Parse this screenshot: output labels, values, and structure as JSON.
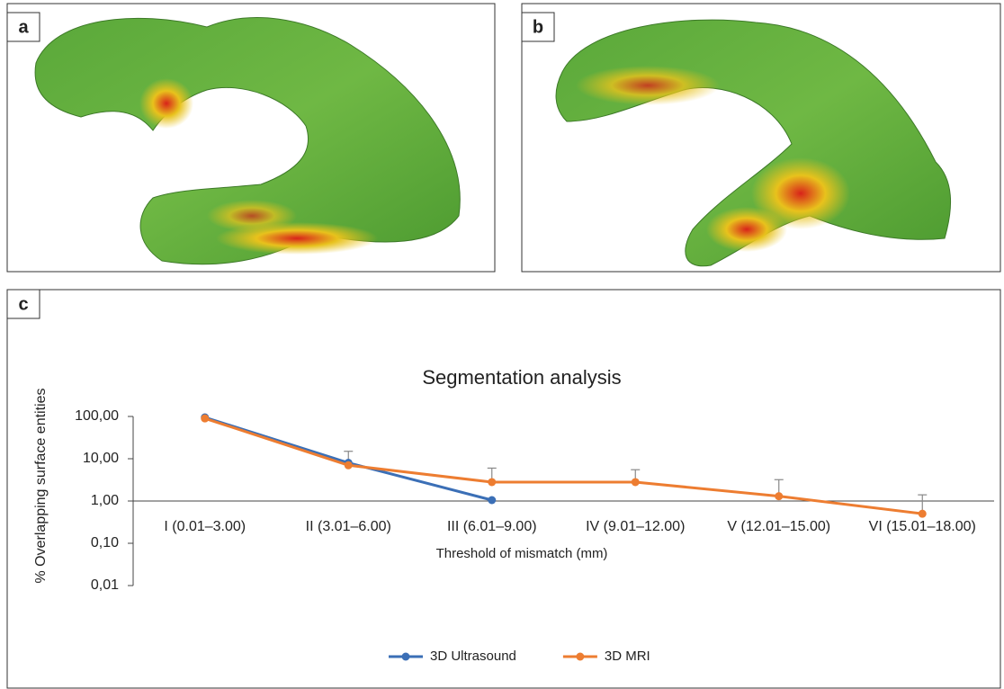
{
  "panels": [
    {
      "label": "a"
    },
    {
      "label": "b"
    },
    {
      "label": "c"
    }
  ],
  "chart_data": {
    "type": "line",
    "title": "Segmentation analysis",
    "x_label": "Threshold of mismatch (mm)",
    "y_label": "% Overlapping surface entities",
    "categories": [
      "I (0.01–3.00)",
      "II (3.01–6.00)",
      "III (6.01–9.00)",
      "IV (9.01–12.00)",
      "V (12.01–15.00)",
      "VI (15.01–18.00)"
    ],
    "series": [
      {
        "name": "3D Ultrasound",
        "color": "#3b6fb6",
        "values": [
          95,
          8,
          1.05,
          null,
          null,
          null
        ]
      },
      {
        "name": "3D MRI",
        "color": "#ed7d31",
        "values": [
          90,
          7,
          2.8,
          2.8,
          1.3,
          0.5
        ],
        "errors": [
          null,
          8,
          3.2,
          2.7,
          1.9,
          0.9
        ]
      }
    ],
    "log_scale": true,
    "ylim": [
      0.01,
      100
    ],
    "yticks": [
      {
        "value": 100,
        "label": "100,00"
      },
      {
        "value": 10,
        "label": "10,00"
      },
      {
        "value": 1,
        "label": "1,00"
      },
      {
        "value": 0.1,
        "label": "0,10"
      },
      {
        "value": 0.01,
        "label": "0,01"
      }
    ],
    "x_axis_at": 1,
    "legend": "bottom"
  }
}
